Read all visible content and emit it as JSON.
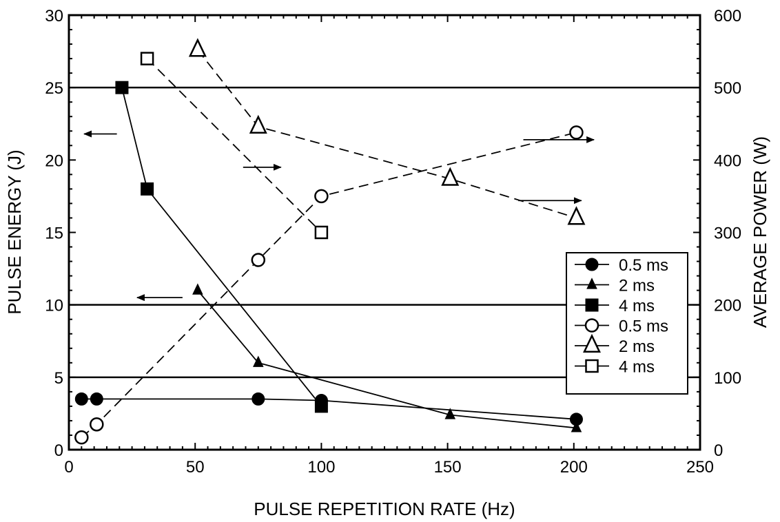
{
  "chart_data": {
    "type": "line",
    "xlabel": "PULSE REPETITION RATE (Hz)",
    "ylabel_left": "PULSE ENERGY (J)",
    "ylabel_right": "AVERAGE POWER (W)",
    "xlim": [
      0,
      250
    ],
    "ylim_left": [
      0,
      30
    ],
    "ylim_right": [
      0,
      600
    ],
    "x_ticks": [
      0,
      50,
      100,
      150,
      200,
      250
    ],
    "y_left_ticks": [
      0,
      5,
      10,
      15,
      20,
      25,
      30
    ],
    "y_right_ticks": [
      0,
      100,
      200,
      300,
      400,
      500,
      600
    ],
    "grid": false,
    "horizontal_reference_lines_left_axis": [
      5,
      10,
      25
    ],
    "legend_position": "right",
    "series": [
      {
        "name": "0.5 ms",
        "axis": "left",
        "marker": "filled-circle",
        "line": "solid",
        "x": [
          5,
          11,
          75,
          100,
          201
        ],
        "y": [
          3.5,
          3.5,
          3.5,
          3.4,
          2.1
        ]
      },
      {
        "name": "2 ms",
        "axis": "left",
        "marker": "filled-triangle",
        "line": "solid",
        "x": [
          51,
          75,
          151,
          201
        ],
        "y": [
          11,
          6,
          2.4,
          1.5
        ]
      },
      {
        "name": "4 ms",
        "axis": "left",
        "marker": "filled-square",
        "line": "solid",
        "x": [
          21,
          31,
          100
        ],
        "y": [
          25,
          18,
          3
        ]
      },
      {
        "name": "0.5 ms",
        "axis": "right",
        "marker": "open-circle",
        "line": "dashed",
        "x": [
          5,
          11,
          75,
          100,
          201
        ],
        "y": [
          17,
          35,
          262,
          350,
          438
        ]
      },
      {
        "name": "2 ms",
        "axis": "right",
        "marker": "open-triangle",
        "line": "dashed",
        "x": [
          51,
          75,
          151,
          201
        ],
        "y": [
          552,
          446,
          374,
          320
        ]
      },
      {
        "name": "4 ms",
        "axis": "right",
        "marker": "open-square",
        "line": "dashed",
        "x": [
          31,
          100
        ],
        "y": [
          540,
          300
        ]
      }
    ],
    "annotations": [
      {
        "type": "arrow",
        "direction": "left",
        "x_from": 19,
        "x_to": 6,
        "y_left": 21.8
      },
      {
        "type": "arrow",
        "direction": "left",
        "x_from": 45,
        "x_to": 27,
        "y_left": 10.5
      },
      {
        "type": "arrow",
        "direction": "right",
        "x_from": 69,
        "x_to": 84,
        "y_left": 19.5
      },
      {
        "type": "arrow",
        "direction": "right",
        "x_from": 180,
        "x_to": 208,
        "y_left": 21.4
      },
      {
        "type": "arrow",
        "direction": "right",
        "x_from": 178,
        "x_to": 203,
        "y_left": 17.2
      }
    ]
  }
}
